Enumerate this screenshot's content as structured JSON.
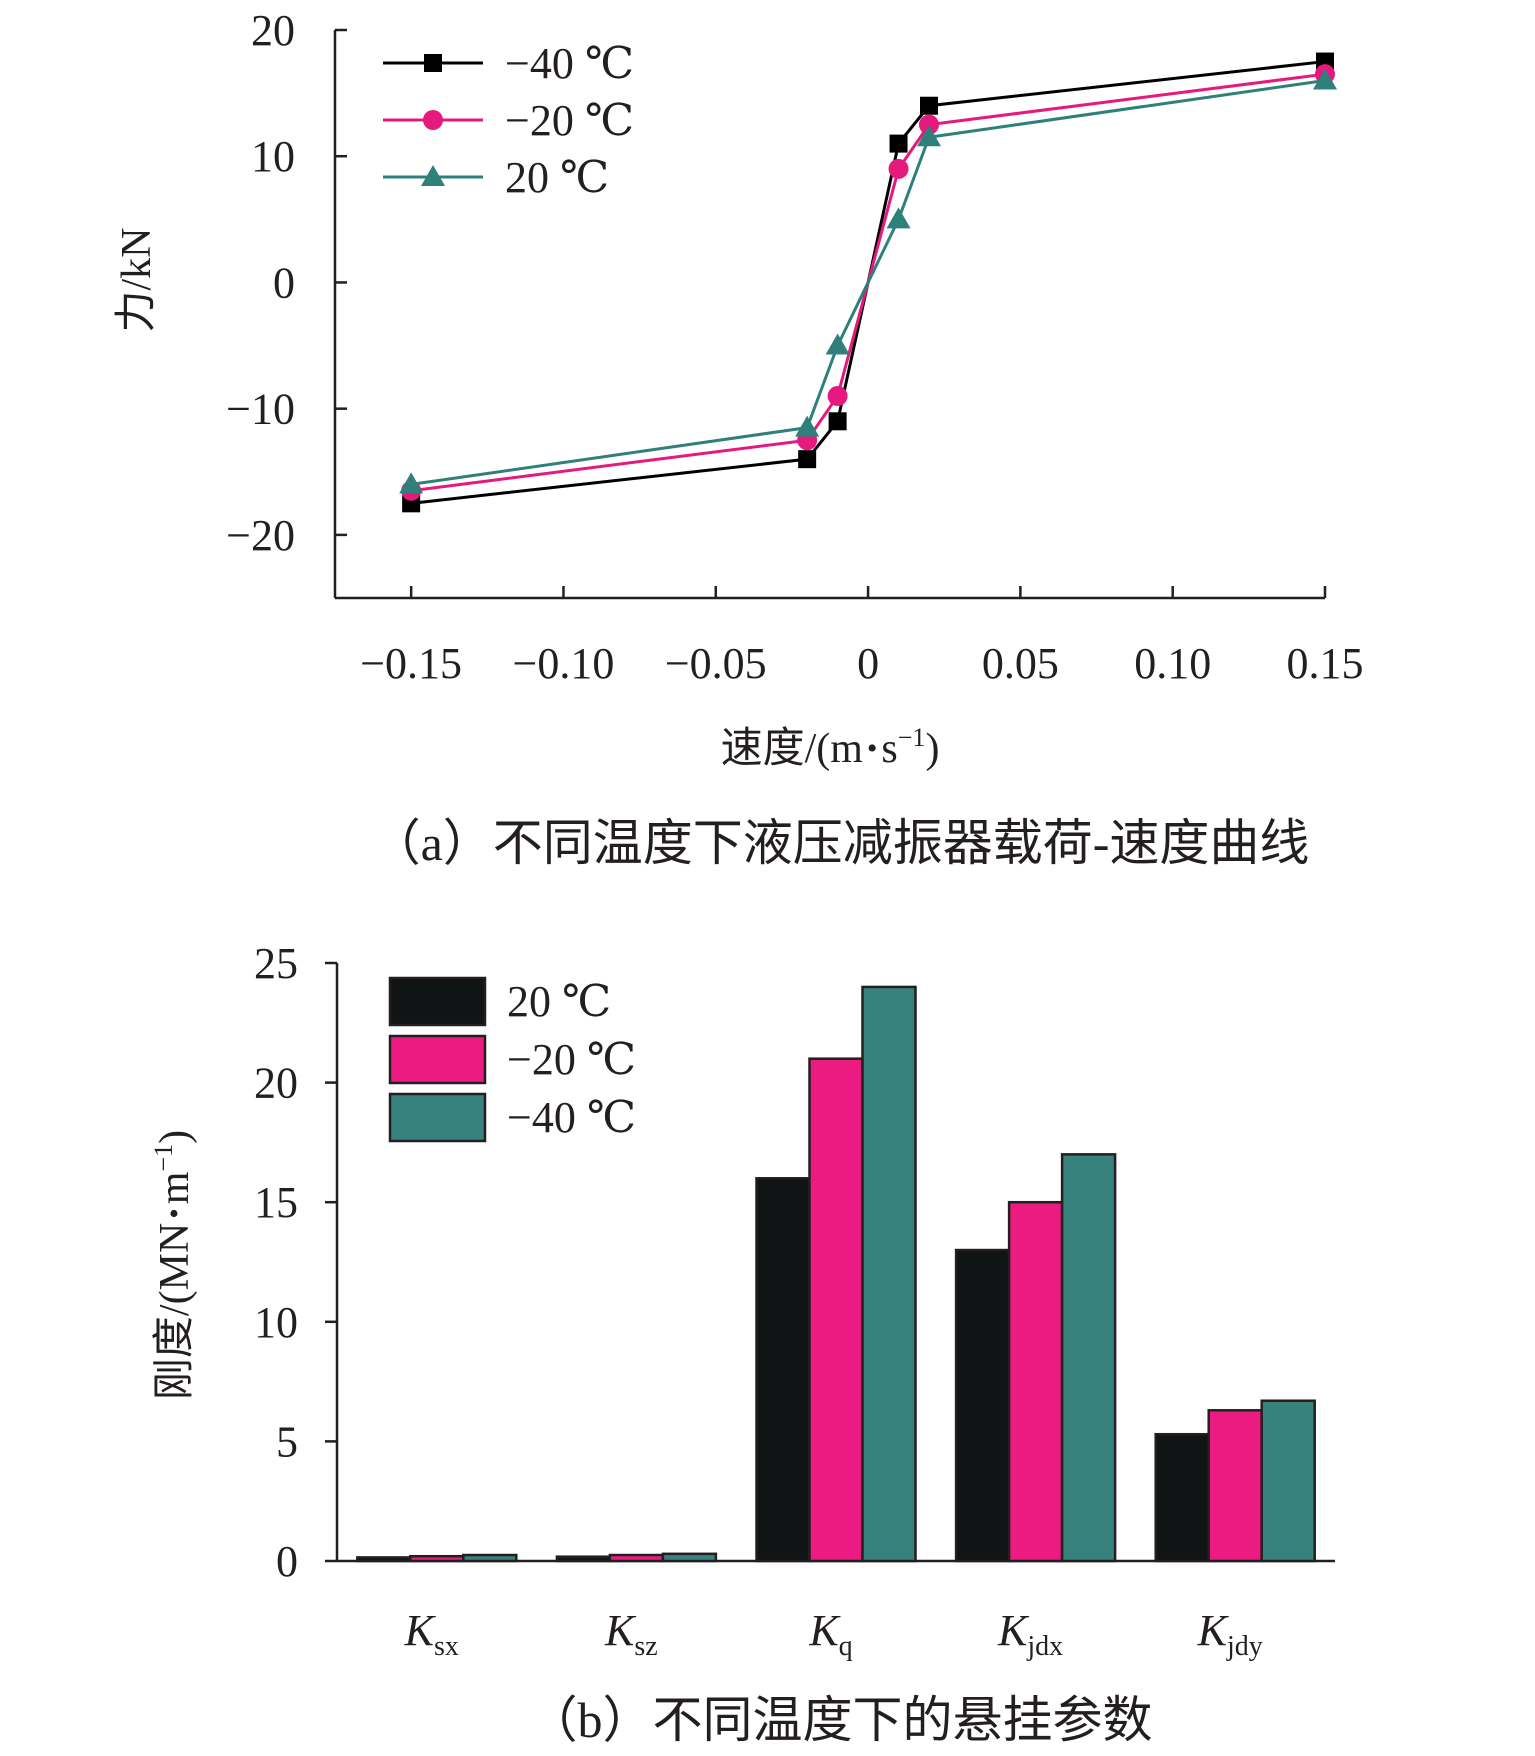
{
  "chart_data": [
    {
      "type": "line",
      "title": "",
      "caption": "（a）不同温度下液压减振器载荷-速度曲线",
      "xlabel": "速度/(m·s⁻¹)",
      "xlabel_parts": {
        "main": "速度/(m",
        "dot": "•",
        "s": "s",
        "sup": "−1",
        "close": ")"
      },
      "ylabel": "力/kN",
      "xlim": [
        -0.175,
        0.15
      ],
      "ylim": [
        -25,
        20
      ],
      "xticks": [
        -0.15,
        -0.1,
        -0.05,
        0,
        0.05,
        0.1,
        0.15
      ],
      "xtick_labels": [
        "−0.15",
        "−0.10",
        "−0.05",
        "0",
        "0.05",
        "0.10",
        "0.15"
      ],
      "yticks": [
        -20,
        -10,
        0,
        10,
        20
      ],
      "ytick_labels": [
        "−20",
        "−10",
        "0",
        "10",
        "20"
      ],
      "legend_position": "top-left",
      "grid": false,
      "series": [
        {
          "name": "−40 ℃",
          "color": "#000000",
          "marker": "square",
          "x": [
            -0.15,
            -0.02,
            -0.01,
            0.01,
            0.02,
            0.15
          ],
          "y": [
            -17.5,
            -14,
            -11,
            11,
            14,
            17.5
          ]
        },
        {
          "name": "−20 ℃",
          "color": "#e5197e",
          "marker": "circle",
          "x": [
            -0.15,
            -0.02,
            -0.01,
            0.01,
            0.02,
            0.15
          ],
          "y": [
            -16.5,
            -12.5,
            -9,
            9,
            12.5,
            16.5
          ]
        },
        {
          "name": "20 ℃",
          "color": "#2f7f7b",
          "marker": "triangle",
          "x": [
            -0.15,
            -0.02,
            -0.01,
            0.01,
            0.02,
            0.15
          ],
          "y": [
            -16,
            -11.5,
            -5,
            5,
            11.5,
            16
          ]
        }
      ]
    },
    {
      "type": "bar",
      "title": "",
      "caption": "（b）不同温度下的悬挂参数",
      "xlabel": "",
      "ylabel": "刚度/(MN·m⁻¹)",
      "ylabel_parts": {
        "main": "刚度/(MN",
        "dot": "•",
        "m": "m",
        "sup": "−1",
        "close": ")"
      },
      "ylim": [
        0,
        25
      ],
      "yticks": [
        0,
        5,
        10,
        15,
        20,
        25
      ],
      "ytick_labels": [
        "0",
        "5",
        "10",
        "15",
        "20",
        "25"
      ],
      "legend_position": "top-left",
      "grid": false,
      "categories": [
        "Ksx",
        "Ksz",
        "Kq",
        "Kjdx",
        "Kjdy"
      ],
      "category_labels": [
        {
          "main": "K",
          "sub": "sx"
        },
        {
          "main": "K",
          "sub": "sz"
        },
        {
          "main": "K",
          "sub": "q"
        },
        {
          "main": "K",
          "sub": "jdx"
        },
        {
          "main": "K",
          "sub": "jdy"
        }
      ],
      "series": [
        {
          "name": "20 ℃",
          "color": "#101414",
          "values": [
            0.15,
            0.18,
            16,
            13,
            5.3
          ]
        },
        {
          "name": "−20 ℃",
          "color": "#ec1b82",
          "values": [
            0.2,
            0.25,
            21,
            15,
            6.3
          ]
        },
        {
          "name": "−40 ℃",
          "color": "#38827e",
          "values": [
            0.25,
            0.3,
            24,
            17,
            6.7
          ]
        }
      ]
    }
  ]
}
